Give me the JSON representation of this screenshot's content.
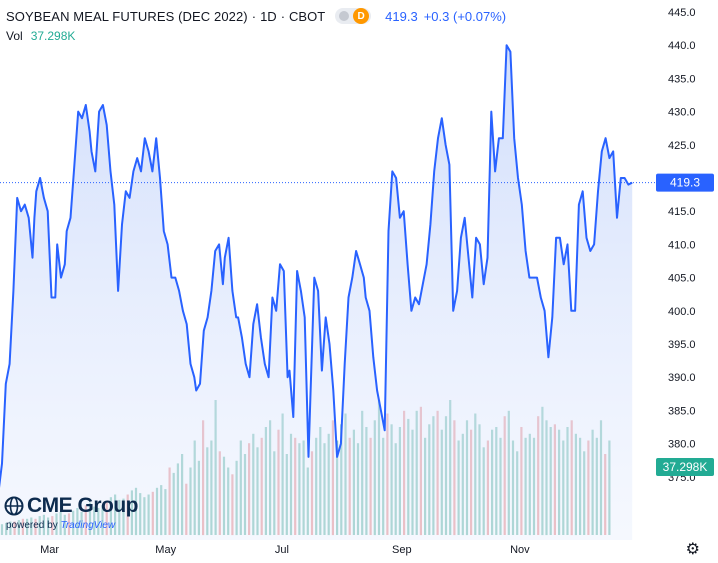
{
  "legend": {
    "symbol": "SOYBEAN MEAL FUTURES (DEC 2022)",
    "interval": "1D",
    "exchange": "CBOT",
    "badge": "D",
    "last": "419.3",
    "change": "+0.3 (+0.07%)",
    "vol_label": "Vol",
    "vol_value": "37.298K"
  },
  "watermark": {
    "brand": "CME Group",
    "powered": "powered by",
    "tv": "TradingView"
  },
  "colors": {
    "line": "#2962ff",
    "area": "#e3ebfd",
    "vol_up": "#8fcbbf",
    "vol_down": "#eea7a8",
    "vol_badge": "#22ab94",
    "price_badge": "#2962ff"
  },
  "chart_data": {
    "type": "line",
    "title": "SOYBEAN MEAL FUTURES (DEC 2022)",
    "ylim": [
      370,
      445
    ],
    "yticks": [
      375,
      380,
      385,
      390,
      395,
      400,
      405,
      410,
      415,
      420,
      425,
      430,
      435,
      440,
      445
    ],
    "xlabels": [
      "Mar",
      "May",
      "Jul",
      "Sep",
      "Nov"
    ],
    "xlabel_days": [
      25,
      86,
      147,
      210,
      272
    ],
    "last_price_label": "419.3",
    "volume_label": "37.298K",
    "grid": false,
    "series": [
      {
        "name": "Price",
        "points": [
          [
            -3,
            370
          ],
          [
            0,
            377
          ],
          [
            2,
            389
          ],
          [
            4,
            392
          ],
          [
            6,
            403
          ],
          [
            8,
            417
          ],
          [
            10,
            415
          ],
          [
            12,
            416
          ],
          [
            14,
            414
          ],
          [
            16,
            408
          ],
          [
            17,
            414
          ],
          [
            18,
            418
          ],
          [
            20,
            420
          ],
          [
            22,
            417
          ],
          [
            24,
            415
          ],
          [
            26,
            402
          ],
          [
            28,
            402
          ],
          [
            29,
            410
          ],
          [
            31,
            405
          ],
          [
            33,
            407
          ],
          [
            34,
            412
          ],
          [
            36,
            414
          ],
          [
            38,
            422
          ],
          [
            40,
            430
          ],
          [
            42,
            429
          ],
          [
            44,
            431
          ],
          [
            46,
            427
          ],
          [
            47,
            424
          ],
          [
            49,
            421
          ],
          [
            51,
            430
          ],
          [
            53,
            431
          ],
          [
            55,
            428
          ],
          [
            57,
            421
          ],
          [
            59,
            416
          ],
          [
            61,
            403
          ],
          [
            63,
            413
          ],
          [
            65,
            418
          ],
          [
            67,
            417
          ],
          [
            69,
            421
          ],
          [
            71,
            423
          ],
          [
            73,
            421
          ],
          [
            75,
            426
          ],
          [
            77,
            424
          ],
          [
            79,
            421
          ],
          [
            81,
            426
          ],
          [
            83,
            420
          ],
          [
            85,
            412
          ],
          [
            87,
            410
          ],
          [
            89,
            405
          ],
          [
            91,
            405
          ],
          [
            93,
            403
          ],
          [
            95,
            400
          ],
          [
            97,
            398
          ],
          [
            99,
            392
          ],
          [
            101,
            390
          ],
          [
            102,
            388
          ],
          [
            104,
            389
          ],
          [
            106,
            397
          ],
          [
            108,
            399
          ],
          [
            110,
            403
          ],
          [
            112,
            409
          ],
          [
            114,
            410
          ],
          [
            116,
            404
          ],
          [
            117,
            408
          ],
          [
            119,
            411
          ],
          [
            121,
            403
          ],
          [
            123,
            399
          ],
          [
            124,
            399
          ],
          [
            126,
            396
          ],
          [
            128,
            392
          ],
          [
            130,
            390
          ],
          [
            132,
            398
          ],
          [
            134,
            401
          ],
          [
            136,
            396
          ],
          [
            138,
            392
          ],
          [
            140,
            390
          ],
          [
            142,
            402
          ],
          [
            144,
            400
          ],
          [
            146,
            407
          ],
          [
            148,
            406
          ],
          [
            150,
            390
          ],
          [
            151,
            391
          ],
          [
            153,
            384
          ],
          [
            155,
            406
          ],
          [
            157,
            403
          ],
          [
            159,
            399
          ],
          [
            161,
            378
          ],
          [
            162,
            387
          ],
          [
            164,
            405
          ],
          [
            166,
            403
          ],
          [
            168,
            391
          ],
          [
            170,
            399
          ],
          [
            172,
            395
          ],
          [
            174,
            388
          ],
          [
            176,
            378
          ],
          [
            178,
            380
          ],
          [
            180,
            392
          ],
          [
            182,
            402
          ],
          [
            184,
            405
          ],
          [
            186,
            409
          ],
          [
            188,
            407
          ],
          [
            190,
            405
          ],
          [
            191,
            402
          ],
          [
            193,
            400
          ],
          [
            195,
            393
          ],
          [
            197,
            388
          ],
          [
            199,
            385
          ],
          [
            201,
            382
          ],
          [
            203,
            412
          ],
          [
            205,
            421
          ],
          [
            207,
            420
          ],
          [
            209,
            414
          ],
          [
            211,
            415
          ],
          [
            213,
            407
          ],
          [
            215,
            400
          ],
          [
            217,
            402
          ],
          [
            219,
            401
          ],
          [
            221,
            404
          ],
          [
            223,
            407
          ],
          [
            225,
            413
          ],
          [
            227,
            421
          ],
          [
            229,
            426
          ],
          [
            231,
            429
          ],
          [
            233,
            425
          ],
          [
            235,
            422
          ],
          [
            237,
            400
          ],
          [
            239,
            403
          ],
          [
            241,
            411
          ],
          [
            243,
            414
          ],
          [
            245,
            408
          ],
          [
            247,
            402
          ],
          [
            249,
            411
          ],
          [
            251,
            410
          ],
          [
            253,
            404
          ],
          [
            255,
            408
          ],
          [
            257,
            430
          ],
          [
            259,
            421
          ],
          [
            261,
            426
          ],
          [
            263,
            426
          ],
          [
            265,
            440
          ],
          [
            267,
            439
          ],
          [
            269,
            426
          ],
          [
            271,
            420
          ],
          [
            273,
            416
          ],
          [
            275,
            409
          ],
          [
            277,
            405
          ],
          [
            279,
            405
          ],
          [
            281,
            405
          ],
          [
            283,
            402
          ],
          [
            285,
            400
          ],
          [
            287,
            393
          ],
          [
            289,
            399
          ],
          [
            291,
            411
          ],
          [
            293,
            411
          ],
          [
            295,
            407
          ],
          [
            297,
            410
          ],
          [
            299,
            400
          ],
          [
            301,
            400
          ],
          [
            303,
            416
          ],
          [
            305,
            418
          ],
          [
            307,
            411
          ],
          [
            309,
            409
          ],
          [
            311,
            410
          ],
          [
            313,
            418
          ],
          [
            315,
            424
          ],
          [
            317,
            426
          ],
          [
            319,
            423
          ],
          [
            321,
            424
          ],
          [
            323,
            414
          ],
          [
            325,
            420
          ],
          [
            327,
            420
          ],
          [
            329,
            419
          ],
          [
            331,
            419.3
          ]
        ]
      }
    ],
    "volume": {
      "unit": "relative",
      "values": [
        0.08,
        0.09,
        0.1,
        0.1,
        0.11,
        0.12,
        0.12,
        0.13,
        0.12,
        0.14,
        0.15,
        0.13,
        0.14,
        0.16,
        0.17,
        0.15,
        0.16,
        0.18,
        0.2,
        0.17,
        0.22,
        0.24,
        0.21,
        0.2,
        0.22,
        0.25,
        0.28,
        0.3,
        0.26,
        0.27,
        0.3,
        0.33,
        0.35,
        0.31,
        0.28,
        0.3,
        0.32,
        0.35,
        0.37,
        0.34,
        0.5,
        0.46,
        0.53,
        0.6,
        0.38,
        0.5,
        0.7,
        0.55,
        0.85,
        0.65,
        0.7,
        1.0,
        0.62,
        0.58,
        0.5,
        0.45,
        0.55,
        0.7,
        0.6,
        0.68,
        0.75,
        0.65,
        0.72,
        0.8,
        0.85,
        0.62,
        0.78,
        0.9,
        0.6,
        0.75,
        0.72,
        0.68,
        0.7,
        0.5,
        0.62,
        0.72,
        0.8,
        0.68,
        0.75,
        0.85,
        0.7,
        0.82,
        0.9,
        0.72,
        0.78,
        0.68,
        0.92,
        0.8,
        0.72,
        0.85,
        1.0,
        0.72,
        0.9,
        0.82,
        0.68,
        0.8,
        0.92,
        0.86,
        0.78,
        0.92,
        0.95,
        0.72,
        0.82,
        0.88,
        0.92,
        0.78,
        0.88,
        1.0,
        0.85,
        0.7,
        0.75,
        0.85,
        0.78,
        0.9,
        0.82,
        0.65,
        0.7,
        0.78,
        0.8,
        0.72,
        0.88,
        0.92,
        0.7,
        0.62,
        0.8,
        0.72,
        0.75,
        0.72,
        0.88,
        0.95,
        0.85,
        0.8,
        0.82,
        0.78,
        0.7,
        0.8,
        0.85,
        0.75,
        0.72,
        0.62,
        0.7,
        0.78,
        0.72,
        0.85,
        0.6,
        0.7
      ],
      "down": [
        3,
        5,
        8,
        12,
        16,
        20,
        25,
        30,
        36,
        40,
        44,
        48,
        52,
        55,
        59,
        62,
        66,
        70,
        74,
        79,
        83,
        88,
        92,
        96,
        100,
        104,
        108,
        112,
        116,
        120,
        124,
        128,
        132,
        136,
        140,
        144,
        148,
        152,
        154,
        158,
        160,
        162,
        165,
        168,
        172,
        176,
        179,
        183,
        186,
        190,
        194,
        198,
        200,
        204,
        208,
        212,
        216,
        220,
        224,
        228,
        233,
        237,
        241,
        245,
        249,
        253,
        257,
        261,
        265,
        269,
        273,
        277,
        281,
        285,
        289,
        293,
        297,
        301,
        305,
        309,
        313,
        317,
        321,
        325,
        329
      ]
    }
  }
}
